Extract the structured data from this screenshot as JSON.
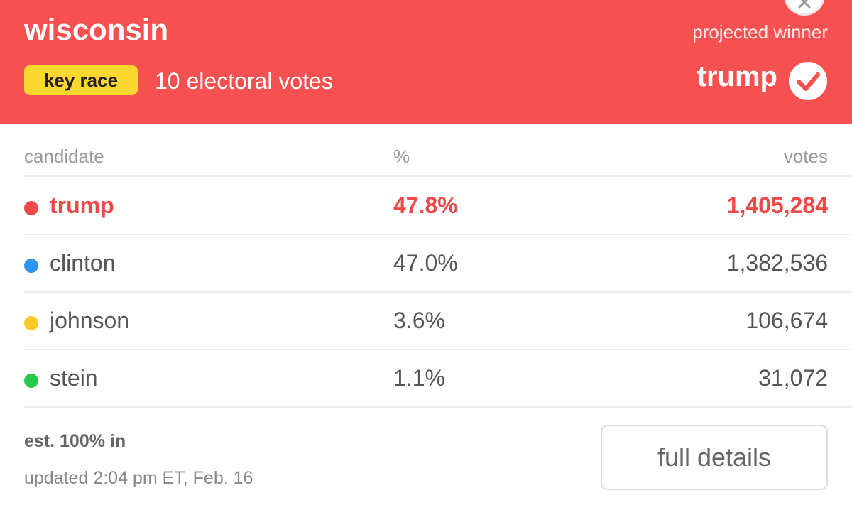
{
  "header": {
    "state": "wisconsin",
    "badge": "key race",
    "electoral_votes": "10 electoral votes",
    "projected_label": "projected winner",
    "winner": "trump",
    "color": "#f75050",
    "badge_color": "#fcd730"
  },
  "table": {
    "headers": {
      "candidate": "candidate",
      "percent": "%",
      "votes": "votes"
    },
    "rows": [
      {
        "name": "trump",
        "percent": "47.8%",
        "votes": "1,405,284",
        "color": "#f04848"
      },
      {
        "name": "clinton",
        "percent": "47.0%",
        "votes": "1,382,536",
        "color": "#2d95f0"
      },
      {
        "name": "johnson",
        "percent": "3.6%",
        "votes": "106,674",
        "color": "#fbc72a"
      },
      {
        "name": "stein",
        "percent": "1.1%",
        "votes": "31,072",
        "color": "#27c94d"
      }
    ]
  },
  "footer": {
    "reporting": "est. 100% in",
    "updated": "updated 2:04 pm ET, Feb. 16",
    "details_button": "full details"
  }
}
